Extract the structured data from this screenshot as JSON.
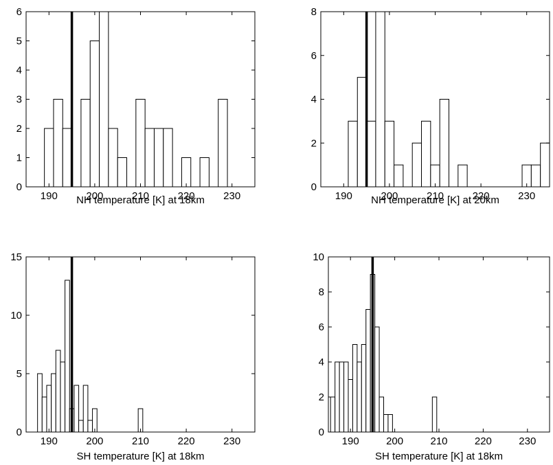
{
  "chart_data": [
    {
      "type": "bar",
      "xlabel": "NH temperature [K] at 18km",
      "ylabel": "",
      "xlim": [
        185,
        235
      ],
      "ylim": [
        0,
        6
      ],
      "xticks": [
        190,
        200,
        210,
        220,
        230
      ],
      "yticks": [
        0,
        1,
        2,
        3,
        4,
        5,
        6
      ],
      "bin_width": 2,
      "bin_centers": [
        190,
        192,
        194,
        196,
        198,
        200,
        202,
        204,
        206,
        208,
        210,
        212,
        214,
        216,
        218,
        220,
        222,
        224,
        226,
        228,
        230,
        232
      ],
      "values": [
        2,
        3,
        2,
        0,
        3,
        5,
        6,
        2,
        1,
        0,
        3,
        2,
        2,
        2,
        0,
        1,
        0,
        1,
        0,
        3,
        0,
        0
      ],
      "reference_line_x": 195
    },
    {
      "type": "bar",
      "xlabel": "NH temperature [K] at 20km",
      "ylabel": "",
      "xlim": [
        185,
        235
      ],
      "ylim": [
        0,
        8
      ],
      "xticks": [
        190,
        200,
        210,
        220,
        230
      ],
      "yticks": [
        0,
        2,
        4,
        6,
        8
      ],
      "bin_width": 2,
      "bin_centers": [
        192,
        194,
        196,
        198,
        200,
        202,
        204,
        206,
        208,
        210,
        212,
        214,
        216,
        218,
        220,
        222,
        224,
        226,
        228,
        230,
        232,
        234
      ],
      "values": [
        3,
        5,
        3,
        8,
        3,
        1,
        0,
        2,
        3,
        1,
        4,
        0,
        1,
        0,
        0,
        0,
        0,
        0,
        0,
        1,
        1,
        2
      ],
      "reference_line_x": 195
    },
    {
      "type": "bar",
      "xlabel": "SH temperature [K] at 18km",
      "ylabel": "",
      "xlim": [
        185,
        235
      ],
      "ylim": [
        0,
        15
      ],
      "xticks": [
        190,
        200,
        210,
        220,
        230
      ],
      "yticks": [
        0,
        5,
        10,
        15
      ],
      "bin_width": 1,
      "bin_centers": [
        188,
        189,
        190,
        191,
        192,
        193,
        194,
        195,
        196,
        197,
        198,
        199,
        200,
        201,
        210
      ],
      "values": [
        5,
        3,
        4,
        5,
        7,
        6,
        13,
        2,
        4,
        1,
        4,
        1,
        2,
        0,
        2
      ],
      "reference_line_x": 195
    },
    {
      "type": "bar",
      "xlabel": "SH temperature [K] at 18km",
      "ylabel": "",
      "xlim": [
        185,
        235
      ],
      "ylim": [
        0,
        10
      ],
      "xticks": [
        190,
        200,
        210,
        220,
        230
      ],
      "yticks": [
        0,
        2,
        4,
        6,
        8,
        10
      ],
      "bin_width": 1,
      "bin_centers": [
        186,
        187,
        188,
        189,
        190,
        191,
        192,
        193,
        194,
        195,
        196,
        197,
        198,
        199,
        200,
        201,
        209
      ],
      "values": [
        2,
        4,
        4,
        4,
        3,
        5,
        4,
        5,
        7,
        9,
        6,
        2,
        1,
        1,
        0,
        0,
        2
      ],
      "reference_line_x": 195
    }
  ],
  "colors": {
    "bar_fill": "#ffffff",
    "bar_stroke": "#000000",
    "axis": "#000000",
    "reference_line": "#000000"
  }
}
